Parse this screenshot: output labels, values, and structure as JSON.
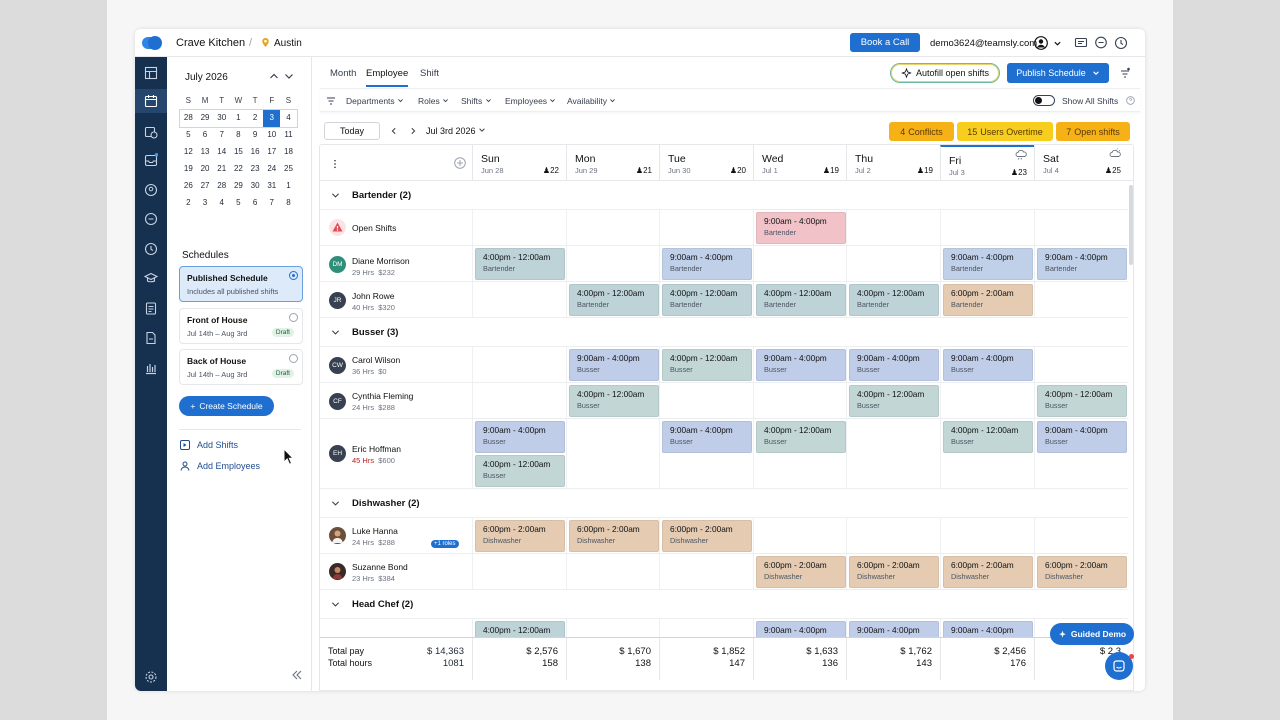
{
  "app": {
    "company": "Crave Kitchen",
    "separator": "/",
    "location": "Austin",
    "book_call": "Book a Call",
    "email": "demo3624@teamsly.com"
  },
  "calendar": {
    "month_label": "July 2026",
    "weekdays": [
      "S",
      "M",
      "T",
      "W",
      "T",
      "F",
      "S"
    ],
    "weeks": [
      [
        "28",
        "29",
        "30",
        "1",
        "2",
        "3",
        "4"
      ],
      [
        "5",
        "6",
        "7",
        "8",
        "9",
        "10",
        "11"
      ],
      [
        "12",
        "13",
        "14",
        "15",
        "16",
        "17",
        "18"
      ],
      [
        "19",
        "20",
        "21",
        "22",
        "23",
        "24",
        "25"
      ],
      [
        "26",
        "27",
        "28",
        "29",
        "30",
        "31",
        "1"
      ],
      [
        "2",
        "3",
        "4",
        "5",
        "6",
        "7",
        "8"
      ]
    ],
    "selected": "3"
  },
  "schedules": {
    "heading": "Schedules",
    "items": [
      {
        "title": "Published Schedule",
        "sub": "Includes all published shifts",
        "badge": ""
      },
      {
        "title": "Front of House",
        "sub": "Jul 14th – Aug 3rd",
        "badge": "Draft"
      },
      {
        "title": "Back of House",
        "sub": "Jul 14th – Aug 3rd",
        "badge": "Draft"
      }
    ],
    "create": "Create Schedule",
    "add_shifts": "Add Shifts",
    "add_employees": "Add Employees"
  },
  "views": {
    "month": "Month",
    "employee": "Employee",
    "shift": "Shift"
  },
  "actions": {
    "autofill": "Autofill open shifts",
    "publish": "Publish Schedule"
  },
  "filters": {
    "departments": "Departments",
    "roles": "Roles",
    "shifts": "Shifts",
    "employees": "Employees",
    "availability": "Availability",
    "show_all": "Show All Shifts"
  },
  "toolbar": {
    "today": "Today",
    "date": "Jul 3rd 2026"
  },
  "badges": {
    "conflicts": {
      "count": "4",
      "label": "Conflicts"
    },
    "overtime": {
      "count": "15",
      "label": "Users Overtime"
    },
    "open": {
      "count": "7",
      "label": "Open shifts"
    }
  },
  "days": [
    {
      "name": "Sun",
      "date": "Jun 28",
      "count": "22"
    },
    {
      "name": "Mon",
      "date": "Jun 29",
      "count": "21"
    },
    {
      "name": "Tue",
      "date": "Jun 30",
      "count": "20"
    },
    {
      "name": "Wed",
      "date": "Jul 1",
      "count": "19"
    },
    {
      "name": "Thu",
      "date": "Jul 2",
      "count": "19"
    },
    {
      "name": "Fri",
      "date": "Jul 3",
      "count": "23"
    },
    {
      "name": "Sat",
      "date": "Jul 4",
      "count": "25"
    }
  ],
  "groups": {
    "bartender": "Bartender (2)",
    "busser": "Busser (3)",
    "dishwasher": "Dishwasher (2)",
    "headchef": "Head Chef (2)"
  },
  "open_shifts_label": "Open Shifts",
  "employees": {
    "dm": {
      "initials": "DM",
      "name": "Diane Morrison",
      "hrs": "29 Hrs",
      "pay": "$232"
    },
    "jr": {
      "initials": "JR",
      "name": "John Rowe",
      "hrs": "40 Hrs",
      "pay": "$320"
    },
    "cw": {
      "initials": "CW",
      "name": "Carol Wilson",
      "hrs": "36 Hrs",
      "pay": "$0"
    },
    "cf": {
      "initials": "CF",
      "name": "Cynthia Fleming",
      "hrs": "24 Hrs",
      "pay": "$288"
    },
    "eh": {
      "initials": "EH",
      "name": "Eric Hoffman",
      "hrs": "45 Hrs",
      "pay": "$600"
    },
    "lh": {
      "initials": "",
      "name": "Luke Hanna",
      "hrs": "24 Hrs",
      "pay": "$288",
      "extra": "+1 roles"
    },
    "sb": {
      "initials": "",
      "name": "Suzanne Bond",
      "hrs": "23 Hrs",
      "pay": "$384"
    }
  },
  "shift_times": {
    "a": "9:00am - 4:00pm",
    "b": "4:00pm - 12:00am",
    "c": "6:00pm - 2:00am"
  },
  "roles": {
    "bartender": "Bartender",
    "busser": "Busser",
    "dishwasher": "Dishwasher"
  },
  "footer": {
    "total_pay_label": "Total pay",
    "total_hours_label": "Total hours",
    "total_pay": "$ 14,363",
    "total_hours": "1081",
    "days": [
      {
        "pay": "$ 2,576",
        "hours": "158"
      },
      {
        "pay": "$ 1,670",
        "hours": "138"
      },
      {
        "pay": "$ 1,852",
        "hours": "147"
      },
      {
        "pay": "$ 1,633",
        "hours": "136"
      },
      {
        "pay": "$ 1,762",
        "hours": "143"
      },
      {
        "pay": "$ 2,456",
        "hours": "176"
      },
      {
        "pay": "$ 2,3",
        "hours": ""
      }
    ]
  },
  "guided_demo": "Guided Demo",
  "colors": {
    "primary": "#1f6fd1",
    "sidebar": "#16304f",
    "bartender": "#bfd0e8",
    "dishwasher": "#e4cbb1",
    "open": "#f1c3c8",
    "conflicts": "#f6b117"
  }
}
